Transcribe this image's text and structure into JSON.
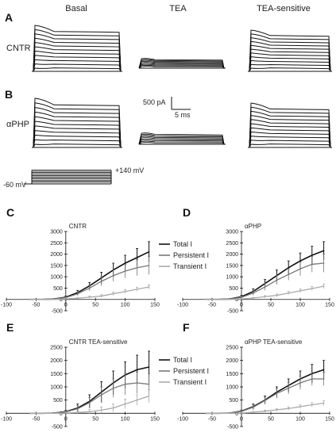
{
  "column_labels": [
    "Basal",
    "TEA",
    "TEA-sensitive"
  ],
  "row_labels": [
    "CNTR",
    "αPHP"
  ],
  "panel_letters": [
    "A",
    "B",
    "C",
    "D",
    "E",
    "F"
  ],
  "scale_bar": {
    "current": "500 pA",
    "time": "5 ms"
  },
  "protocol": {
    "holding": "-60 mV",
    "step": "+140 mV"
  },
  "legend": [
    "Total I",
    "Persistent I",
    "Transient I"
  ],
  "colors": {
    "total": "#111111",
    "persistent": "#777777",
    "transient": "#aaaaaa",
    "trace": "#111111"
  },
  "chart_data": [
    {
      "type": "line",
      "panel": "C",
      "title": "CNTR",
      "x": [
        -60,
        -40,
        -20,
        0,
        20,
        40,
        60,
        80,
        100,
        120,
        140
      ],
      "ylim": [
        -500,
        3000
      ],
      "xlim": [
        -100,
        150
      ],
      "xticks": [
        -100,
        -50,
        0,
        50,
        100,
        150
      ],
      "yticks": [
        -500,
        0,
        500,
        1000,
        1500,
        2000,
        2500,
        3000
      ],
      "series": [
        {
          "name": "Total I",
          "values": [
            0,
            0,
            20,
            100,
            300,
            600,
            950,
            1300,
            1600,
            1850,
            2100
          ],
          "err": [
            0,
            0,
            20,
            50,
            100,
            150,
            250,
            300,
            350,
            400,
            450
          ]
        },
        {
          "name": "Persistent I",
          "values": [
            0,
            0,
            15,
            80,
            250,
            500,
            800,
            1050,
            1250,
            1400,
            1500
          ],
          "err": [
            0,
            0,
            15,
            40,
            80,
            130,
            200,
            250,
            300,
            350,
            400
          ]
        },
        {
          "name": "Transient I",
          "values": [
            0,
            0,
            5,
            20,
            50,
            100,
            150,
            250,
            350,
            450,
            550
          ],
          "err": [
            0,
            0,
            5,
            15,
            30,
            50,
            60,
            70,
            80,
            90,
            100
          ]
        }
      ]
    },
    {
      "type": "line",
      "panel": "D",
      "title": "αPHP",
      "x": [
        -60,
        -40,
        -20,
        0,
        20,
        40,
        60,
        80,
        100,
        120,
        140
      ],
      "ylim": [
        -500,
        3000
      ],
      "xlim": [
        -100,
        150
      ],
      "xticks": [
        -100,
        -50,
        0,
        50,
        100,
        150
      ],
      "yticks": [
        -500,
        0,
        500,
        1000,
        1500,
        2000,
        2500,
        3000
      ],
      "series": [
        {
          "name": "Total I",
          "values": [
            0,
            0,
            20,
            120,
            350,
            700,
            1050,
            1400,
            1700,
            1950,
            2150
          ],
          "err": [
            0,
            0,
            20,
            60,
            120,
            180,
            250,
            300,
            350,
            400,
            400
          ]
        },
        {
          "name": "Persistent I",
          "values": [
            0,
            0,
            15,
            90,
            280,
            550,
            850,
            1100,
            1350,
            1550,
            1600
          ],
          "err": [
            0,
            0,
            15,
            50,
            100,
            150,
            200,
            250,
            300,
            350,
            400
          ]
        },
        {
          "name": "Transient I",
          "values": [
            0,
            0,
            5,
            20,
            60,
            120,
            180,
            280,
            380,
            480,
            580
          ],
          "err": [
            0,
            0,
            5,
            15,
            30,
            50,
            60,
            70,
            80,
            90,
            100
          ]
        }
      ]
    },
    {
      "type": "line",
      "panel": "E",
      "title": "CNTR TEA-sensitive",
      "x": [
        -60,
        -40,
        -20,
        0,
        20,
        40,
        60,
        80,
        100,
        120,
        140
      ],
      "ylim": [
        -500,
        2500
      ],
      "xlim": [
        -100,
        150
      ],
      "xticks": [
        -100,
        -50,
        0,
        50,
        100,
        150
      ],
      "yticks": [
        -500,
        0,
        500,
        1000,
        1500,
        2000,
        2500
      ],
      "series": [
        {
          "name": "Total I",
          "values": [
            0,
            0,
            10,
            60,
            200,
            450,
            800,
            1150,
            1450,
            1650,
            1750
          ],
          "err": [
            0,
            0,
            20,
            50,
            150,
            250,
            400,
            450,
            500,
            550,
            600
          ]
        },
        {
          "name": "Persistent I",
          "values": [
            0,
            0,
            10,
            50,
            170,
            400,
            700,
            950,
            1100,
            1150,
            1100
          ],
          "err": [
            0,
            0,
            15,
            40,
            120,
            200,
            300,
            350,
            400,
            400,
            400
          ]
        },
        {
          "name": "Transient I",
          "values": [
            0,
            0,
            0,
            10,
            30,
            60,
            120,
            200,
            350,
            500,
            650
          ],
          "err": [
            0,
            0,
            5,
            20,
            50,
            80,
            120,
            150,
            180,
            200,
            250
          ]
        }
      ]
    },
    {
      "type": "line",
      "panel": "F",
      "title": "αPHP TEA-sensitive",
      "x": [
        -60,
        -40,
        -20,
        0,
        20,
        40,
        60,
        80,
        100,
        120,
        140
      ],
      "ylim": [
        -500,
        2500
      ],
      "xlim": [
        -100,
        150
      ],
      "xticks": [
        -100,
        -50,
        0,
        50,
        100,
        150
      ],
      "yticks": [
        -500,
        0,
        500,
        1000,
        1500,
        2000,
        2500
      ],
      "series": [
        {
          "name": "Total I",
          "values": [
            0,
            0,
            10,
            80,
            250,
            500,
            800,
            1050,
            1300,
            1500,
            1650
          ],
          "err": [
            0,
            0,
            15,
            40,
            100,
            150,
            200,
            250,
            300,
            350,
            350
          ]
        },
        {
          "name": "Persistent I",
          "values": [
            0,
            0,
            10,
            70,
            230,
            480,
            750,
            950,
            1150,
            1300,
            1300
          ],
          "err": [
            0,
            0,
            15,
            40,
            90,
            130,
            180,
            220,
            250,
            250,
            250
          ]
        },
        {
          "name": "Transient I",
          "values": [
            0,
            0,
            0,
            10,
            40,
            80,
            130,
            180,
            250,
            320,
            380
          ],
          "err": [
            0,
            0,
            5,
            15,
            30,
            40,
            50,
            60,
            70,
            80,
            90
          ]
        }
      ]
    }
  ]
}
